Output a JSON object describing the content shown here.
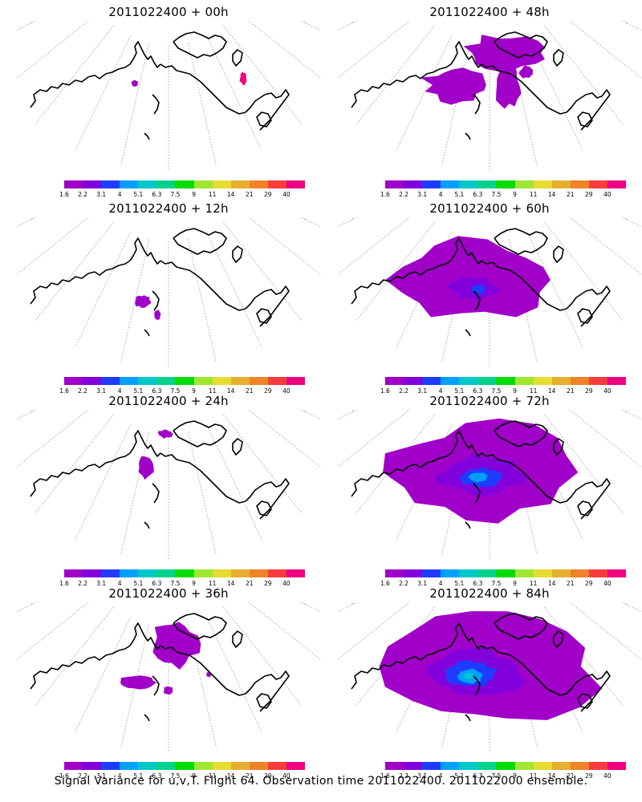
{
  "panels": [
    {
      "title": "2011022400 + 00h",
      "hours": 0
    },
    {
      "title": "2011022400 + 48h",
      "hours": 48
    },
    {
      "title": "2011022400 + 12h",
      "hours": 12
    },
    {
      "title": "2011022400 + 60h",
      "hours": 60
    },
    {
      "title": "2011022400 + 24h",
      "hours": 24
    },
    {
      "title": "2011022400 + 72h",
      "hours": 72
    },
    {
      "title": "2011022400 + 36h",
      "hours": 36
    },
    {
      "title": "2011022400 + 84h",
      "hours": 84
    }
  ],
  "colorbar": {
    "colors": [
      "#a000c8",
      "#8200dc",
      "#1e3cff",
      "#00a0ff",
      "#00c8c8",
      "#00d28c",
      "#00dc00",
      "#a0e632",
      "#e6dc32",
      "#e6af2d",
      "#f08228",
      "#fa3c3c",
      "#f00082"
    ],
    "tick_labels": [
      "1.6",
      "2.2",
      "3.1",
      "4",
      "5.1",
      "6.3",
      "7.5",
      "9",
      "11",
      "14",
      "21",
      "29",
      "40"
    ]
  },
  "footer": "Signal Variance for u,v,T. Flight 64. Observation time 2011022400. 2011022000 ensemble."
}
